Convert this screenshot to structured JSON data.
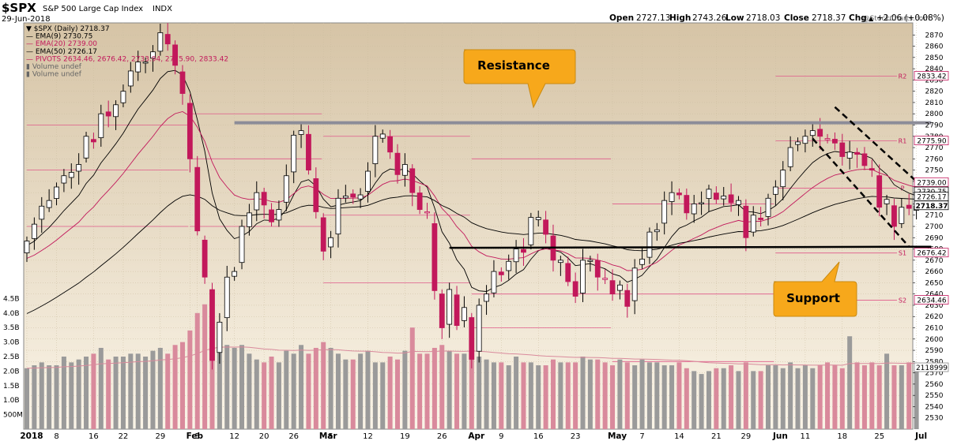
{
  "header": {
    "ticker": "$SPX",
    "name": "S&P 500 Large Cap Index",
    "exchange": "INDX",
    "date": "29-Jun-2018",
    "open_label": "Open",
    "open": "2727.13",
    "high_label": "High",
    "high": "2743.26",
    "low_label": "Low",
    "low": "2718.03",
    "close_label": "Close",
    "close": "2718.37",
    "chg_label": "Chg",
    "chg": "+2.06 (+0.08%)",
    "chg_arrow": "▲",
    "credit": "@StockCharts.com"
  },
  "legend": [
    {
      "text": "▼ $SPX (Daily) 2718.37",
      "color": "#000000"
    },
    {
      "text": "— EMA(9) 2730.75",
      "color": "#000000"
    },
    {
      "text": "— EMA(20) 2739.00",
      "color": "#c2185b"
    },
    {
      "text": "— EMA(50) 2726.17",
      "color": "#000000"
    },
    {
      "text": "— PIVOTS 2634.46, 2676.42, 2733.94, 2775.90, 2833.42",
      "color": "#c2185b"
    },
    {
      "text": "▮ Volume undef",
      "color": "#666666"
    },
    {
      "text": "▮ Volume undef",
      "color": "#666666"
    }
  ],
  "annotations": {
    "resistance_label": "Resistance",
    "support_label": "Support"
  },
  "colors": {
    "up": "#ffffff",
    "down": "#c2185b",
    "black": "#000000",
    "callout_fill": "#f7a81b",
    "bg_top": "#d6c4a6",
    "bg_bottom": "#faf4e7"
  },
  "chart_data": {
    "type": "candlestick",
    "price_range": [
      2520,
      2880
    ],
    "volume_range": [
      0,
      5000000000
    ],
    "y_ticks": [
      2530,
      2540,
      2550,
      2560,
      2570,
      2580,
      2590,
      2600,
      2610,
      2620,
      2630,
      2640,
      2650,
      2660,
      2670,
      2680,
      2690,
      2700,
      2710,
      2720,
      2730,
      2740,
      2750,
      2760,
      2770,
      2780,
      2790,
      2800,
      2810,
      2820,
      2830,
      2840,
      2850,
      2860,
      2870
    ],
    "volume_ticks": [
      {
        "label": "4.5B",
        "v": 4500000000
      },
      {
        "label": "4.0B",
        "v": 4000000000
      },
      {
        "label": "3.5B",
        "v": 3500000000
      },
      {
        "label": "3.0B",
        "v": 3000000000
      },
      {
        "label": "2.5B",
        "v": 2500000000
      },
      {
        "label": "2.0B",
        "v": 2000000000
      },
      {
        "label": "1.5B",
        "v": 1500000000
      },
      {
        "label": "1.0B",
        "v": 1000000000
      },
      {
        "label": "500M",
        "v": 500000000
      }
    ],
    "x_labels": [
      {
        "i": 0,
        "label": "2018",
        "bold": true
      },
      {
        "i": 4,
        "label": "8",
        "bold": false
      },
      {
        "i": 9,
        "label": "16",
        "bold": false
      },
      {
        "i": 13,
        "label": "22",
        "bold": false
      },
      {
        "i": 18,
        "label": "29",
        "bold": false
      },
      {
        "i": 22,
        "label": "Feb",
        "bold": true
      },
      {
        "i": 23,
        "label": "5",
        "bold": false
      },
      {
        "i": 28,
        "label": "12",
        "bold": false
      },
      {
        "i": 32,
        "label": "20",
        "bold": false
      },
      {
        "i": 36,
        "label": "26",
        "bold": false
      },
      {
        "i": 40,
        "label": "Mar",
        "bold": true
      },
      {
        "i": 41,
        "label": "5",
        "bold": false
      },
      {
        "i": 46,
        "label": "12",
        "bold": false
      },
      {
        "i": 51,
        "label": "19",
        "bold": false
      },
      {
        "i": 56,
        "label": "26",
        "bold": false
      },
      {
        "i": 60,
        "label": "Apr",
        "bold": true
      },
      {
        "i": 64,
        "label": "9",
        "bold": false
      },
      {
        "i": 69,
        "label": "16",
        "bold": false
      },
      {
        "i": 74,
        "label": "23",
        "bold": false
      },
      {
        "i": 79,
        "label": "May",
        "bold": true
      },
      {
        "i": 83,
        "label": "7",
        "bold": false
      },
      {
        "i": 88,
        "label": "14",
        "bold": false
      },
      {
        "i": 93,
        "label": "21",
        "bold": false
      },
      {
        "i": 97,
        "label": "29",
        "bold": false
      },
      {
        "i": 101,
        "label": "Jun",
        "bold": true
      },
      {
        "i": 105,
        "label": "11",
        "bold": false
      },
      {
        "i": 110,
        "label": "18",
        "bold": false
      },
      {
        "i": 115,
        "label": "25",
        "bold": false
      },
      {
        "i": 120,
        "label": "Jul",
        "bold": true
      }
    ],
    "closes": [
      2687,
      2702,
      2718,
      2723,
      2735,
      2745,
      2748,
      2755,
      2780,
      2775,
      2800,
      2798,
      2808,
      2820,
      2838,
      2846,
      2846,
      2855,
      2872,
      2862,
      2843,
      2818,
      2760,
      2696,
      2655,
      2581,
      2615,
      2655,
      2660,
      2700,
      2712,
      2730,
      2719,
      2704,
      2715,
      2745,
      2781,
      2785,
      2750,
      2713,
      2678,
      2690,
      2725,
      2727,
      2726,
      2728,
      2749,
      2780,
      2782,
      2766,
      2746,
      2755,
      2730,
      2715,
      2713,
      2643,
      2610,
      2644,
      2612,
      2628,
      2582,
      2630,
      2640,
      2660,
      2657,
      2669,
      2680,
      2677,
      2708,
      2708,
      2693,
      2670,
      2670,
      2651,
      2638,
      2670,
      2670,
      2655,
      2654,
      2640,
      2648,
      2629,
      2663,
      2671,
      2695,
      2697,
      2723,
      2730,
      2728,
      2712,
      2720,
      2721,
      2733,
      2724,
      2727,
      2721,
      2723,
      2690,
      2710,
      2706,
      2725,
      2735,
      2750,
      2770,
      2775,
      2780,
      2785,
      2780,
      2778,
      2774,
      2762,
      2766,
      2764,
      2754,
      2750,
      2717,
      2724,
      2700,
      2717,
      2716,
      2718
    ],
    "volumes": [
      2.1,
      2.2,
      2.3,
      2.2,
      2.2,
      2.5,
      2.3,
      2.4,
      2.5,
      2.6,
      2.8,
      2.4,
      2.5,
      2.5,
      2.6,
      2.6,
      2.5,
      2.7,
      2.8,
      2.6,
      2.9,
      3.0,
      3.4,
      4.0,
      4.3,
      3.9,
      3.5,
      2.9,
      2.8,
      2.9,
      2.6,
      2.4,
      2.3,
      2.5,
      2.3,
      2.7,
      2.6,
      2.9,
      2.6,
      2.8,
      3.0,
      2.8,
      2.6,
      2.4,
      2.4,
      2.6,
      2.7,
      2.3,
      2.3,
      2.5,
      2.4,
      2.7,
      3.5,
      2.6,
      2.6,
      2.8,
      2.9,
      2.7,
      2.6,
      2.6,
      2.9,
      2.5,
      2.4,
      2.3,
      2.3,
      2.2,
      2.5,
      2.3,
      2.3,
      2.2,
      2.2,
      2.4,
      2.3,
      2.3,
      2.3,
      2.5,
      2.4,
      2.4,
      2.3,
      2.2,
      2.4,
      2.3,
      2.2,
      2.4,
      2.3,
      2.3,
      2.2,
      2.2,
      2.3,
      2.1,
      2.0,
      1.9,
      2.0,
      2.1,
      2.1,
      2.2,
      2.0,
      2.3,
      2.0,
      2.0,
      2.2,
      2.2,
      2.1,
      2.3,
      2.1,
      2.2,
      2.1,
      2.2,
      2.3,
      2.2,
      2.1,
      3.2,
      2.3,
      2.2,
      2.3,
      2.2,
      2.6,
      2.2,
      2.2,
      2.3,
      2.1
    ],
    "pivots": [
      {
        "label": "R2",
        "value": 2833.42
      },
      {
        "label": "R1",
        "value": 2775.9
      },
      {
        "label": "P",
        "value": 2733.94
      },
      {
        "label": "S1",
        "value": 2676.42
      },
      {
        "label": "S2",
        "value": 2634.46
      }
    ],
    "price_tags": [
      {
        "value": 2833.42,
        "text": "2833.42",
        "bold": false
      },
      {
        "value": 2775.9,
        "text": "2775.90",
        "bold": false
      },
      {
        "value": 2739.0,
        "text": "2739.00",
        "bold": false
      },
      {
        "value": 2730.75,
        "text": "2730.75",
        "bold": false
      },
      {
        "value": 2726.17,
        "text": "2726.17",
        "bold": false
      },
      {
        "value": 2718.37,
        "text": "2718.37",
        "bold": true
      },
      {
        "value": 2676.42,
        "text": "2676.42",
        "bold": false
      },
      {
        "value": 2634.46,
        "text": "2634.46",
        "bold": false
      }
    ],
    "volume_tag": {
      "text": "2118999",
      "v": 2118999000
    },
    "trendlines": {
      "resistance": {
        "from_i": 28,
        "to_i": 122,
        "value": 2792
      },
      "support": {
        "from_i": 57,
        "to_i": 122,
        "from_value": 2681,
        "to_value": 2682
      },
      "channel_upper": {
        "from_i": 109,
        "from_value": 2806,
        "to_i": 121,
        "to_value": 2734
      },
      "channel_lower": {
        "from_i": 106,
        "from_value": 2778,
        "to_i": 119,
        "to_value": 2682
      }
    }
  }
}
